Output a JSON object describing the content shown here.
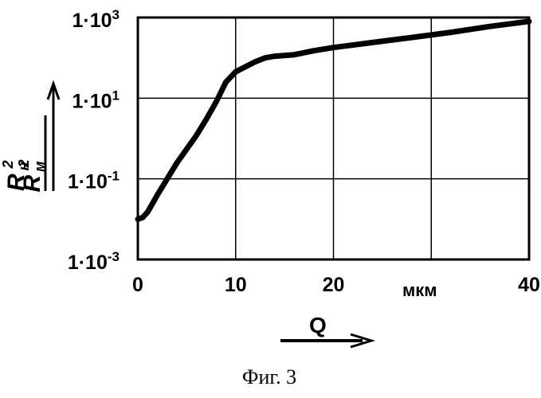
{
  "chart_data": {
    "type": "line",
    "caption": "Фиг. 3",
    "xlabel": "Q",
    "x_unit": "мкм",
    "ylabel": {
      "numerator": "R",
      "numerator_sub": "м",
      "numerator_sup": "2",
      "denominator": "R",
      "denominator_sub": "н",
      "denominator_sup": "2"
    },
    "xlim": [
      0,
      40
    ],
    "ylim_exponent": [
      -3,
      3
    ],
    "y_scale": "log",
    "x_ticks": [
      "0",
      "10",
      "20",
      "40"
    ],
    "x_tick_values": [
      0,
      10,
      20,
      40
    ],
    "y_ticks": [
      {
        "exp": -3,
        "base": "1·10",
        "sup": "-3"
      },
      {
        "exp": -1,
        "base": "1·10",
        "sup": "-1"
      },
      {
        "exp": 1,
        "base": "1·10",
        "sup": "1"
      },
      {
        "exp": 3,
        "base": "1·10",
        "sup": "3"
      }
    ],
    "grid": true,
    "series": [
      {
        "x": [
          0,
          0.5,
          1,
          2,
          3,
          4,
          5,
          6,
          7,
          8,
          9,
          10,
          11,
          12,
          13,
          14,
          16,
          18,
          20,
          24,
          28,
          32,
          36,
          40
        ],
        "y": [
          0.01,
          0.011,
          0.015,
          0.04,
          0.1,
          0.25,
          0.55,
          1.2,
          3,
          8,
          25,
          45,
          60,
          80,
          100,
          110,
          120,
          150,
          180,
          240,
          320,
          430,
          600,
          800
        ]
      }
    ]
  }
}
